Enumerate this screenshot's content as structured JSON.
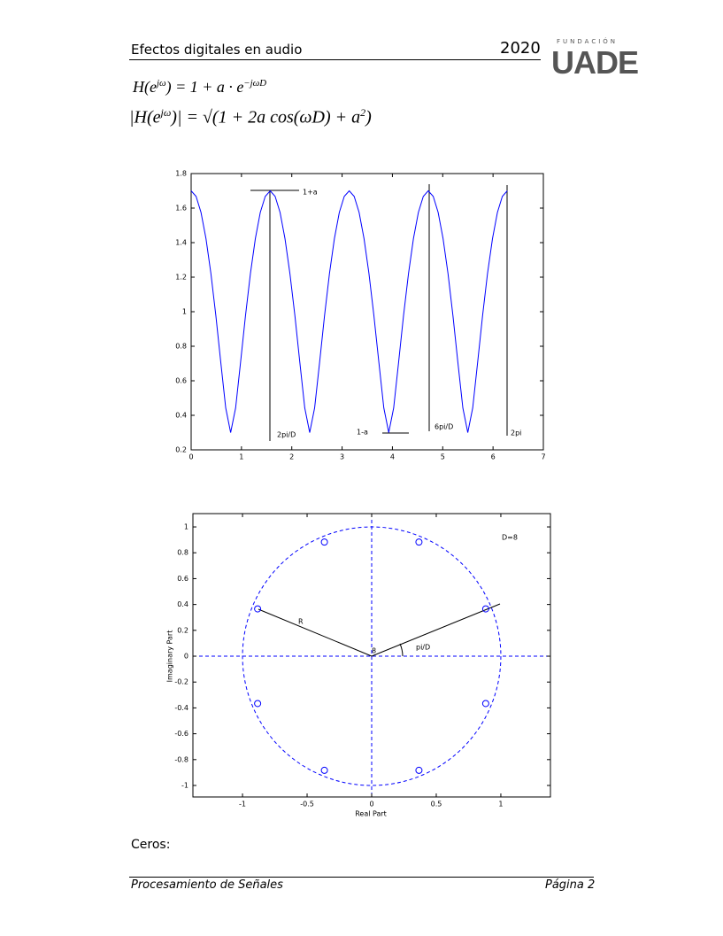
{
  "header": {
    "title": "Efectos digitales en audio",
    "year": "2020",
    "logo_top": "FUNDACIÓN",
    "logo": "UADE"
  },
  "equations": [
    [
      "H(e",
      "jω",
      ") = 1 + a · e",
      "−jωD"
    ],
    [
      "|H(e",
      "jω",
      ")| = √(1 + 2a cos(ωD) + a",
      "2",
      ")"
    ]
  ],
  "chart_data": [
    {
      "type": "line",
      "x": [
        0.0,
        0.098,
        0.196,
        0.295,
        0.393,
        0.491,
        0.589,
        0.687,
        0.785,
        0.884,
        0.982,
        1.08,
        1.178,
        1.276,
        1.374,
        1.473,
        1.571,
        1.669,
        1.767,
        1.865,
        1.963,
        2.062,
        2.16,
        2.258,
        2.356,
        2.454,
        2.553,
        2.651,
        2.749,
        2.847,
        2.945,
        3.043,
        3.142,
        3.24,
        3.338,
        3.436,
        3.534,
        3.632,
        3.731,
        3.829,
        3.927,
        4.025,
        4.123,
        4.221,
        4.32,
        4.418,
        4.516,
        4.614,
        4.712,
        4.811,
        4.909,
        5.007,
        5.105,
        5.203,
        5.301,
        5.4,
        5.498,
        5.596,
        5.694,
        5.792,
        5.89,
        5.989,
        6.087,
        6.185,
        6.283
      ],
      "series": [
        {
          "color": "#0000ff",
          "values": [
            1.7,
            1.668,
            1.575,
            1.423,
            1.221,
            0.977,
            0.707,
            0.443,
            0.3,
            0.443,
            0.707,
            0.977,
            1.221,
            1.423,
            1.575,
            1.668,
            1.7,
            1.668,
            1.575,
            1.423,
            1.221,
            0.977,
            0.707,
            0.443,
            0.3,
            0.443,
            0.707,
            0.977,
            1.221,
            1.423,
            1.575,
            1.668,
            1.7,
            1.668,
            1.575,
            1.423,
            1.221,
            0.977,
            0.707,
            0.443,
            0.3,
            0.443,
            0.707,
            0.977,
            1.221,
            1.423,
            1.575,
            1.668,
            1.7,
            1.668,
            1.575,
            1.423,
            1.221,
            0.977,
            0.707,
            0.443,
            0.3,
            0.443,
            0.707,
            0.977,
            1.221,
            1.423,
            1.575,
            1.668,
            1.7
          ]
        }
      ],
      "xlim": [
        0,
        7
      ],
      "xticks": [
        0,
        1,
        2,
        3,
        4,
        5,
        6,
        7
      ],
      "ylim": [
        0.2,
        1.8
      ],
      "yticks": [
        0.2,
        0.4,
        0.6,
        0.8,
        1,
        1.2,
        1.4,
        1.6,
        1.8
      ],
      "annotations": [
        "1+a",
        "2pi/D",
        "1-a",
        "6pi/D",
        "2pi"
      ]
    },
    {
      "type": "scatter",
      "x_label": "Real Part",
      "y_label": "Imaginary Part",
      "series": [
        {
          "color": "#0000ff",
          "x": [
            0.883,
            0.366,
            -0.366,
            -0.883,
            -0.883,
            -0.366,
            0.366,
            0.883
          ],
          "values": [
            0.366,
            0.883,
            0.883,
            0.366,
            -0.366,
            -0.883,
            -0.883,
            -0.366
          ]
        }
      ],
      "xlim": [
        -1.384,
        1.384
      ],
      "xticks": [
        -1,
        -0.5,
        0,
        0.5,
        1
      ],
      "ylim": [
        -1.089,
        1.103
      ],
      "yticks": [
        -1,
        -0.8,
        -0.6,
        -0.4,
        -0.2,
        0,
        0.2,
        0.4,
        0.6,
        0.8,
        1
      ],
      "annotations": [
        "D=8",
        "R",
        "pi/D",
        "8"
      ]
    }
  ],
  "body_text": "Ceros:",
  "footer": {
    "left": "Procesamiento de Señales",
    "right": "Página 2"
  }
}
